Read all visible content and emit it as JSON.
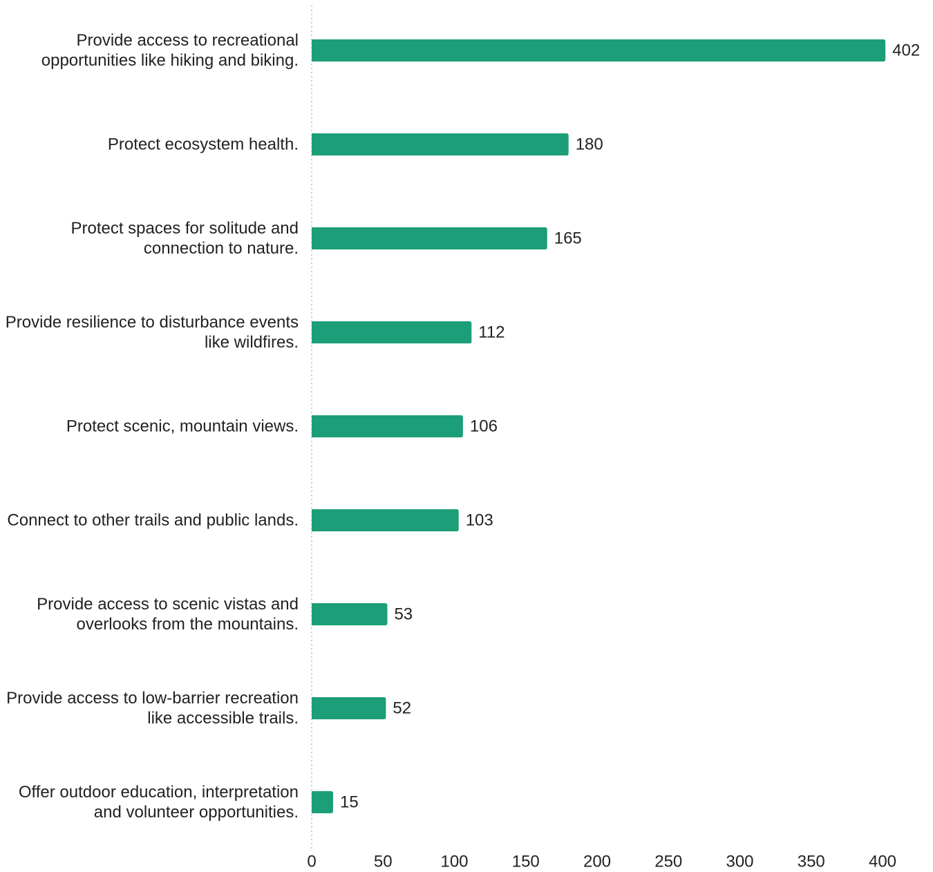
{
  "chart_data": {
    "type": "bar",
    "orientation": "horizontal",
    "categories": [
      "Provide access to recreational opportunities like hiking and biking.",
      "Protect ecosystem health.",
      "Protect spaces for solitude and connection to nature.",
      "Provide resilience to disturbance events like wildfires.",
      "Protect scenic, mountain views.",
      "Connect to other trails and public lands.",
      "Provide access to scenic vistas and overlooks from the mountains.",
      "Provide access to low-barrier recreation like accessible trails.",
      "Offer outdoor education, interpretation and volunteer opportunities."
    ],
    "values": [
      402,
      180,
      165,
      112,
      106,
      103,
      53,
      52,
      15
    ],
    "color": "#1c9e78",
    "xlim": [
      0,
      400
    ],
    "xticks": [
      0,
      50,
      100,
      150,
      200,
      250,
      300,
      350,
      400
    ]
  }
}
